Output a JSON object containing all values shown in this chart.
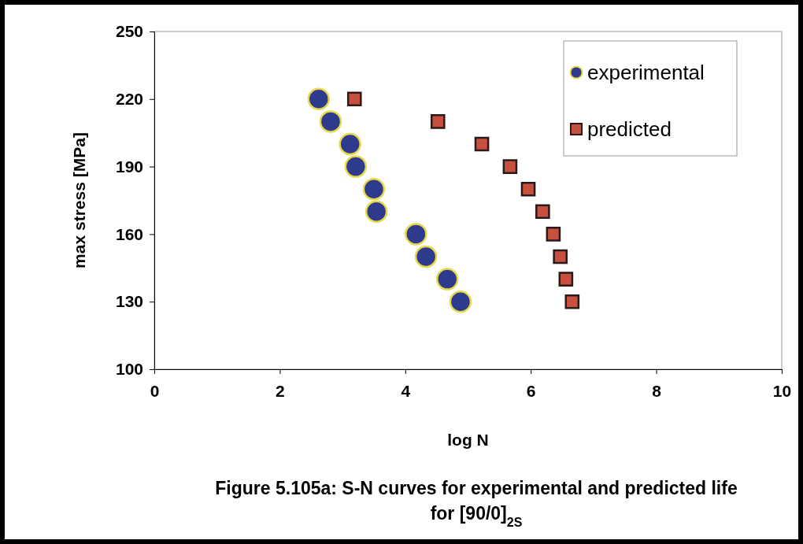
{
  "chart_data": {
    "type": "scatter",
    "xlabel": "log N",
    "ylabel": "max stress [MPa]",
    "xlim": [
      0,
      10
    ],
    "xticks": [
      0,
      2,
      4,
      6,
      8,
      10
    ],
    "ylim": [
      100,
      250
    ],
    "yticks": [
      100,
      130,
      160,
      190,
      220,
      250
    ],
    "grid": false,
    "legend": "top right",
    "series": [
      {
        "name": "experimental",
        "color": "#2e3a8c",
        "marker": "circle",
        "x": [
          2.62,
          2.81,
          3.12,
          3.21,
          3.5,
          3.54,
          4.17,
          4.33,
          4.67,
          4.88
        ],
        "values": [
          220,
          210,
          200,
          190,
          180,
          170,
          160,
          150,
          140,
          130
        ]
      },
      {
        "name": "predicted",
        "color": "#c8503e",
        "marker": "square",
        "x": [
          3.19,
          4.52,
          5.22,
          5.67,
          5.96,
          6.19,
          6.36,
          6.47,
          6.56,
          6.66
        ],
        "values": [
          220,
          210,
          200,
          190,
          180,
          170,
          160,
          150,
          140,
          130
        ]
      }
    ],
    "annotations": [
      "Figure 5.105a: S-N curves for experimental and predicted life for [90/0]$_{2S}$"
    ]
  }
}
